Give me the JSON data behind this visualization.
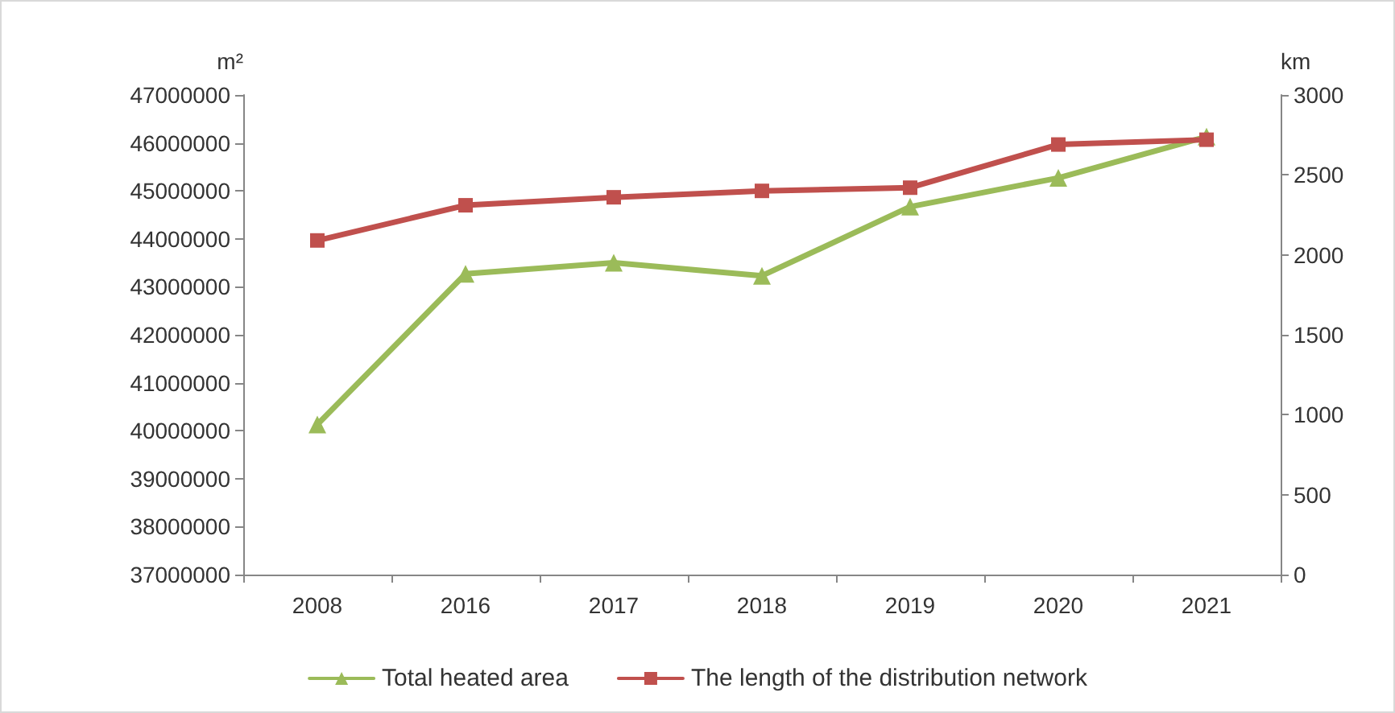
{
  "chart_data": {
    "type": "line",
    "ylabel": "m²",
    "y2label": "km",
    "categories": [
      "2008",
      "2016",
      "2017",
      "2018",
      "2019",
      "2020",
      "2021"
    ],
    "series": [
      {
        "name": "Total heated area",
        "color": "#9bbb59",
        "marker": "triangle",
        "values": [
          40130000,
          43270000,
          43500000,
          43230000,
          44670000,
          45270000,
          46130000
        ]
      },
      {
        "name": "The length of the distribution network",
        "color": "#c0504d",
        "marker": "square",
        "axis": "y2",
        "values": [
          2090,
          2310,
          2360,
          2400,
          2420,
          2690,
          2720
        ]
      }
    ],
    "ylim": [
      37000000,
      47000000
    ],
    "yticks": [
      37000000,
      38000000,
      39000000,
      40000000,
      41000000,
      42000000,
      43000000,
      44000000,
      45000000,
      46000000,
      47000000
    ],
    "y2lim": [
      0,
      3000
    ],
    "y2ticks": [
      0,
      500,
      1000,
      1500,
      2000,
      2500,
      3000
    ],
    "grid": false,
    "legend": "bottom",
    "line_style": "solid"
  }
}
